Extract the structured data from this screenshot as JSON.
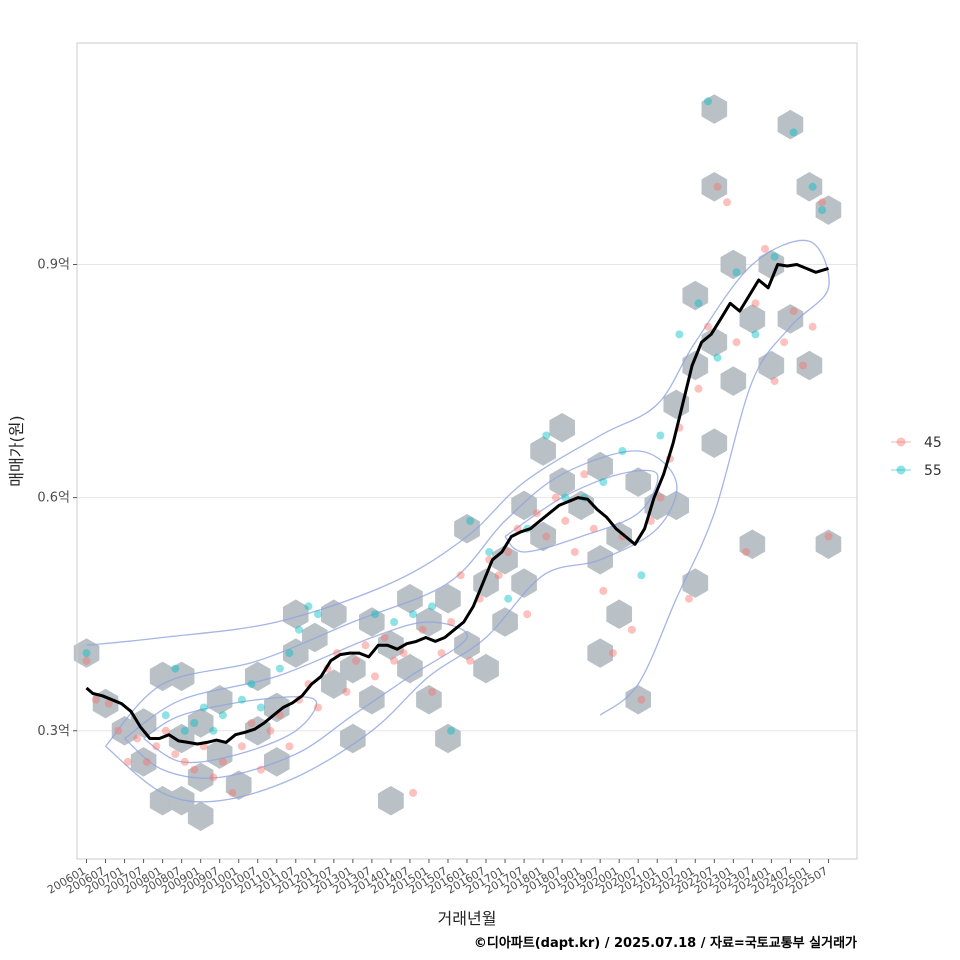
{
  "chart_data": {
    "type": "scatter",
    "title": "",
    "xlabel": "거래년월",
    "ylabel": "매매가(원)",
    "caption": "©디아파트(dapt.kr) / 2025.07.18 / 자료=국토교통부 실거래가",
    "ylim": [
      0.135,
      1.185
    ],
    "xlim": [
      "2005-10",
      "2026-04"
    ],
    "x_ticks": [
      "200601",
      "200607",
      "200701",
      "200707",
      "200801",
      "200807",
      "200901",
      "200907",
      "201001",
      "201007",
      "201101",
      "201107",
      "201201",
      "201207",
      "201301",
      "201307",
      "201401",
      "201407",
      "201501",
      "201507",
      "201601",
      "201607",
      "201701",
      "201707",
      "201801",
      "201807",
      "201901",
      "201907",
      "202001",
      "202007",
      "202101",
      "202107",
      "202201",
      "202207",
      "202301",
      "202307",
      "202401",
      "202407",
      "202501",
      "202507"
    ],
    "y_ticks": [
      {
        "value": 0.3,
        "label": "0.3억"
      },
      {
        "value": 0.6,
        "label": "0.6억"
      },
      {
        "value": 0.9,
        "label": "0.9억"
      }
    ],
    "grid": true,
    "legend": {
      "position": "right",
      "entries": [
        {
          "label": "45",
          "color": "#F8766D"
        },
        {
          "label": "55",
          "color": "#00BFC4"
        }
      ]
    },
    "colors": {
      "hex": "#B9C0C6",
      "contour": "#8FA4E0",
      "trend": "#000000",
      "s45": "#F8766D",
      "s55": "#00BFC4",
      "panel_border": "#CCCCCC",
      "grid": "#E6E6E6"
    },
    "trend": [
      [
        "2006-01",
        0.355
      ],
      [
        "2006-03",
        0.348
      ],
      [
        "2006-06",
        0.345
      ],
      [
        "2006-09",
        0.34
      ],
      [
        "2006-12",
        0.335
      ],
      [
        "2007-03",
        0.325
      ],
      [
        "2007-06",
        0.305
      ],
      [
        "2007-09",
        0.29
      ],
      [
        "2007-12",
        0.29
      ],
      [
        "2008-03",
        0.295
      ],
      [
        "2008-06",
        0.287
      ],
      [
        "2008-09",
        0.285
      ],
      [
        "2008-12",
        0.283
      ],
      [
        "2009-03",
        0.285
      ],
      [
        "2009-06",
        0.288
      ],
      [
        "2009-09",
        0.285
      ],
      [
        "2009-12",
        0.295
      ],
      [
        "2010-03",
        0.298
      ],
      [
        "2010-06",
        0.302
      ],
      [
        "2010-09",
        0.31
      ],
      [
        "2010-12",
        0.32
      ],
      [
        "2011-03",
        0.33
      ],
      [
        "2011-06",
        0.336
      ],
      [
        "2011-09",
        0.345
      ],
      [
        "2011-12",
        0.36
      ],
      [
        "2012-03",
        0.37
      ],
      [
        "2012-06",
        0.39
      ],
      [
        "2012-09",
        0.398
      ],
      [
        "2012-12",
        0.4
      ],
      [
        "2013-03",
        0.4
      ],
      [
        "2013-06",
        0.395
      ],
      [
        "2013-09",
        0.41
      ],
      [
        "2013-12",
        0.41
      ],
      [
        "2014-03",
        0.405
      ],
      [
        "2014-06",
        0.412
      ],
      [
        "2014-09",
        0.415
      ],
      [
        "2014-12",
        0.42
      ],
      [
        "2015-03",
        0.415
      ],
      [
        "2015-06",
        0.42
      ],
      [
        "2015-09",
        0.43
      ],
      [
        "2015-12",
        0.44
      ],
      [
        "2016-03",
        0.46
      ],
      [
        "2016-06",
        0.49
      ],
      [
        "2016-09",
        0.52
      ],
      [
        "2016-12",
        0.53
      ],
      [
        "2017-03",
        0.55
      ],
      [
        "2017-06",
        0.556
      ],
      [
        "2017-09",
        0.56
      ],
      [
        "2017-12",
        0.57
      ],
      [
        "2018-03",
        0.58
      ],
      [
        "2018-06",
        0.59
      ],
      [
        "2018-09",
        0.595
      ],
      [
        "2018-12",
        0.6
      ],
      [
        "2019-03",
        0.598
      ],
      [
        "2019-06",
        0.585
      ],
      [
        "2019-09",
        0.575
      ],
      [
        "2019-12",
        0.56
      ],
      [
        "2020-03",
        0.55
      ],
      [
        "2020-06",
        0.54
      ],
      [
        "2020-09",
        0.56
      ],
      [
        "2020-12",
        0.6
      ],
      [
        "2021-03",
        0.63
      ],
      [
        "2021-06",
        0.67
      ],
      [
        "2021-09",
        0.72
      ],
      [
        "2021-12",
        0.77
      ],
      [
        "2022-03",
        0.8
      ],
      [
        "2022-06",
        0.81
      ],
      [
        "2022-09",
        0.83
      ],
      [
        "2022-12",
        0.85
      ],
      [
        "2023-03",
        0.84
      ],
      [
        "2023-06",
        0.86
      ],
      [
        "2023-09",
        0.88
      ],
      [
        "2023-12",
        0.87
      ],
      [
        "2024-03",
        0.9
      ],
      [
        "2024-06",
        0.898
      ],
      [
        "2024-09",
        0.9
      ],
      [
        "2024-12",
        0.895
      ],
      [
        "2025-03",
        0.89
      ],
      [
        "2025-07",
        0.895
      ]
    ],
    "hexbins": [
      [
        "2006-01",
        0.4
      ],
      [
        "2006-07",
        0.335
      ],
      [
        "2007-01",
        0.3
      ],
      [
        "2007-07",
        0.26
      ],
      [
        "2007-07",
        0.31
      ],
      [
        "2008-01",
        0.37
      ],
      [
        "2008-01",
        0.21
      ],
      [
        "2008-07",
        0.37
      ],
      [
        "2008-07",
        0.21
      ],
      [
        "2009-01",
        0.19
      ],
      [
        "2008-07",
        0.29
      ],
      [
        "2009-01",
        0.24
      ],
      [
        "2009-01",
        0.31
      ],
      [
        "2009-07",
        0.27
      ],
      [
        "2009-07",
        0.34
      ],
      [
        "2010-01",
        0.23
      ],
      [
        "2010-07",
        0.3
      ],
      [
        "2010-07",
        0.37
      ],
      [
        "2011-01",
        0.26
      ],
      [
        "2011-01",
        0.33
      ],
      [
        "2011-07",
        0.4
      ],
      [
        "2011-07",
        0.45
      ],
      [
        "2012-01",
        0.42
      ],
      [
        "2012-07",
        0.36
      ],
      [
        "2012-07",
        0.45
      ],
      [
        "2013-01",
        0.29
      ],
      [
        "2013-01",
        0.38
      ],
      [
        "2013-07",
        0.34
      ],
      [
        "2013-07",
        0.44
      ],
      [
        "2014-01",
        0.41
      ],
      [
        "2014-01",
        0.21
      ],
      [
        "2014-07",
        0.47
      ],
      [
        "2014-07",
        0.38
      ],
      [
        "2015-01",
        0.34
      ],
      [
        "2015-01",
        0.44
      ],
      [
        "2015-07",
        0.29
      ],
      [
        "2015-07",
        0.47
      ],
      [
        "2016-01",
        0.41
      ],
      [
        "2016-07",
        0.38
      ],
      [
        "2016-07",
        0.49
      ],
      [
        "2016-01",
        0.56
      ],
      [
        "2017-01",
        0.52
      ],
      [
        "2017-01",
        0.44
      ],
      [
        "2017-07",
        0.59
      ],
      [
        "2017-07",
        0.49
      ],
      [
        "2018-01",
        0.66
      ],
      [
        "2018-01",
        0.55
      ],
      [
        "2018-07",
        0.69
      ],
      [
        "2018-07",
        0.62
      ],
      [
        "2019-01",
        0.59
      ],
      [
        "2019-07",
        0.64
      ],
      [
        "2019-07",
        0.52
      ],
      [
        "2019-07",
        0.4
      ],
      [
        "2020-01",
        0.55
      ],
      [
        "2020-01",
        0.45
      ],
      [
        "2020-07",
        0.62
      ],
      [
        "2020-07",
        0.34
      ],
      [
        "2021-01",
        0.59
      ],
      [
        "2021-07",
        0.72
      ],
      [
        "2021-07",
        0.59
      ],
      [
        "2022-01",
        0.86
      ],
      [
        "2022-01",
        0.77
      ],
      [
        "2022-01",
        0.49
      ],
      [
        "2022-07",
        0.8
      ],
      [
        "2022-07",
        0.67
      ],
      [
        "2022-07",
        1.1
      ],
      [
        "2022-07",
        1.0
      ],
      [
        "2023-01",
        0.9
      ],
      [
        "2023-01",
        0.75
      ],
      [
        "2023-07",
        0.83
      ],
      [
        "2023-07",
        0.54
      ],
      [
        "2024-01",
        0.9
      ],
      [
        "2024-01",
        0.77
      ],
      [
        "2024-07",
        1.08
      ],
      [
        "2024-07",
        0.83
      ],
      [
        "2025-01",
        1.0
      ],
      [
        "2025-01",
        0.77
      ],
      [
        "2025-07",
        0.97
      ],
      [
        "2025-07",
        0.54
      ]
    ],
    "contours": [
      [
        [
          "2006-01",
          0.41
        ],
        [
          "2008-01",
          0.42
        ],
        [
          "2011-01",
          0.44
        ],
        [
          "2014-01",
          0.49
        ],
        [
          "2016-01",
          0.55
        ],
        [
          "2017-07",
          0.62
        ],
        [
          "2019-07",
          0.68
        ],
        [
          "2021-01",
          0.72
        ],
        [
          "2022-01",
          0.8
        ],
        [
          "2023-07",
          0.9
        ],
        [
          "2025-01",
          0.93
        ],
        [
          "2025-07",
          0.87
        ],
        [
          "2024-07",
          0.82
        ],
        [
          "2023-07",
          0.75
        ],
        [
          "2022-07",
          0.58
        ],
        [
          "2021-07",
          0.47
        ],
        [
          "2020-07",
          0.36
        ],
        [
          "2019-07",
          0.32
        ]
      ],
      [
        [
          "2006-07",
          0.28
        ],
        [
          "2008-01",
          0.36
        ],
        [
          "2010-07",
          0.39
        ],
        [
          "2013-01",
          0.44
        ],
        [
          "2015-07",
          0.49
        ],
        [
          "2017-01",
          0.57
        ],
        [
          "2018-07",
          0.63
        ],
        [
          "2020-07",
          0.66
        ],
        [
          "2021-07",
          0.62
        ],
        [
          "2021-01",
          0.56
        ],
        [
          "2019-07",
          0.52
        ],
        [
          "2018-01",
          0.5
        ],
        [
          "2016-07",
          0.42
        ],
        [
          "2015-01",
          0.37
        ],
        [
          "2013-07",
          0.3
        ],
        [
          "2011-07",
          0.24
        ],
        [
          "2009-07",
          0.21
        ],
        [
          "2008-01",
          0.22
        ],
        [
          "2006-07",
          0.28
        ]
      ],
      [
        [
          "2007-01",
          0.29
        ],
        [
          "2008-07",
          0.34
        ],
        [
          "2011-01",
          0.37
        ],
        [
          "2013-07",
          0.42
        ],
        [
          "2015-01",
          0.44
        ],
        [
          "2016-01",
          0.42
        ],
        [
          "2014-07",
          0.37
        ],
        [
          "2013-01",
          0.32
        ],
        [
          "2011-07",
          0.27
        ],
        [
          "2009-07",
          0.24
        ],
        [
          "2008-01",
          0.25
        ],
        [
          "2007-01",
          0.29
        ]
      ],
      [
        [
          "2007-07",
          0.29
        ],
        [
          "2008-07",
          0.32
        ],
        [
          "2010-07",
          0.34
        ],
        [
          "2012-01",
          0.34
        ],
        [
          "2011-07",
          0.3
        ],
        [
          "2010-01",
          0.27
        ],
        [
          "2008-07",
          0.26
        ],
        [
          "2007-07",
          0.29
        ]
      ],
      [
        [
          "2017-01",
          0.55
        ],
        [
          "2018-07",
          0.6
        ],
        [
          "2020-01",
          0.63
        ],
        [
          "2021-01",
          0.63
        ],
        [
          "2020-07",
          0.58
        ],
        [
          "2019-01",
          0.55
        ],
        [
          "2017-07",
          0.53
        ],
        [
          "2017-01",
          0.55
        ]
      ]
    ],
    "points_45": [
      [
        "2006-01",
        0.39
      ],
      [
        "2006-04",
        0.34
      ],
      [
        "2006-08",
        0.335
      ],
      [
        "2006-11",
        0.3
      ],
      [
        "2007-02",
        0.26
      ],
      [
        "2007-05",
        0.29
      ],
      [
        "2007-08",
        0.26
      ],
      [
        "2007-11",
        0.28
      ],
      [
        "2008-02",
        0.3
      ],
      [
        "2008-05",
        0.27
      ],
      [
        "2008-08",
        0.26
      ],
      [
        "2008-11",
        0.25
      ],
      [
        "2009-02",
        0.28
      ],
      [
        "2009-05",
        0.24
      ],
      [
        "2009-08",
        0.26
      ],
      [
        "2009-11",
        0.22
      ],
      [
        "2010-02",
        0.28
      ],
      [
        "2010-05",
        0.31
      ],
      [
        "2010-08",
        0.25
      ],
      [
        "2010-11",
        0.3
      ],
      [
        "2011-02",
        0.32
      ],
      [
        "2011-05",
        0.28
      ],
      [
        "2011-08",
        0.34
      ],
      [
        "2011-11",
        0.36
      ],
      [
        "2012-02",
        0.33
      ],
      [
        "2012-05",
        0.38
      ],
      [
        "2012-08",
        0.4
      ],
      [
        "2012-11",
        0.35
      ],
      [
        "2013-02",
        0.39
      ],
      [
        "2013-05",
        0.41
      ],
      [
        "2013-08",
        0.37
      ],
      [
        "2013-11",
        0.42
      ],
      [
        "2014-02",
        0.39
      ],
      [
        "2014-05",
        0.4
      ],
      [
        "2014-08",
        0.22
      ],
      [
        "2014-11",
        0.43
      ],
      [
        "2015-02",
        0.35
      ],
      [
        "2015-05",
        0.4
      ],
      [
        "2015-08",
        0.44
      ],
      [
        "2015-11",
        0.5
      ],
      [
        "2016-02",
        0.39
      ],
      [
        "2016-05",
        0.47
      ],
      [
        "2016-08",
        0.52
      ],
      [
        "2016-11",
        0.5
      ],
      [
        "2017-02",
        0.53
      ],
      [
        "2017-05",
        0.56
      ],
      [
        "2017-08",
        0.45
      ],
      [
        "2017-11",
        0.58
      ],
      [
        "2018-02",
        0.55
      ],
      [
        "2018-05",
        0.6
      ],
      [
        "2018-08",
        0.57
      ],
      [
        "2018-11",
        0.53
      ],
      [
        "2019-02",
        0.63
      ],
      [
        "2019-05",
        0.56
      ],
      [
        "2019-08",
        0.48
      ],
      [
        "2019-11",
        0.4
      ],
      [
        "2020-02",
        0.55
      ],
      [
        "2020-05",
        0.43
      ],
      [
        "2020-08",
        0.34
      ],
      [
        "2020-11",
        0.57
      ],
      [
        "2021-02",
        0.6
      ],
      [
        "2021-05",
        0.65
      ],
      [
        "2021-08",
        0.69
      ],
      [
        "2021-11",
        0.47
      ],
      [
        "2022-02",
        0.74
      ],
      [
        "2022-05",
        0.82
      ],
      [
        "2022-08",
        1.0
      ],
      [
        "2022-11",
        0.98
      ],
      [
        "2023-02",
        0.8
      ],
      [
        "2023-05",
        0.53
      ],
      [
        "2023-08",
        0.85
      ],
      [
        "2023-11",
        0.92
      ],
      [
        "2024-02",
        0.75
      ],
      [
        "2024-05",
        0.8
      ],
      [
        "2024-08",
        0.84
      ],
      [
        "2024-11",
        0.77
      ],
      [
        "2025-02",
        0.82
      ],
      [
        "2025-05",
        0.98
      ],
      [
        "2025-07",
        0.55
      ]
    ],
    "points_55": [
      [
        "2006-01",
        0.4
      ],
      [
        "2008-02",
        0.32
      ],
      [
        "2008-05",
        0.38
      ],
      [
        "2008-08",
        0.3
      ],
      [
        "2008-11",
        0.31
      ],
      [
        "2009-02",
        0.33
      ],
      [
        "2009-05",
        0.3
      ],
      [
        "2009-08",
        0.32
      ],
      [
        "2010-02",
        0.34
      ],
      [
        "2010-05",
        0.36
      ],
      [
        "2010-08",
        0.33
      ],
      [
        "2011-02",
        0.38
      ],
      [
        "2011-05",
        0.4
      ],
      [
        "2011-08",
        0.43
      ],
      [
        "2011-11",
        0.46
      ],
      [
        "2012-02",
        0.45
      ],
      [
        "2013-08",
        0.45
      ],
      [
        "2014-02",
        0.44
      ],
      [
        "2014-08",
        0.45
      ],
      [
        "2015-02",
        0.46
      ],
      [
        "2015-08",
        0.3
      ],
      [
        "2016-02",
        0.57
      ],
      [
        "2016-08",
        0.53
      ],
      [
        "2017-02",
        0.47
      ],
      [
        "2017-08",
        0.56
      ],
      [
        "2018-02",
        0.68
      ],
      [
        "2018-08",
        0.6
      ],
      [
        "2019-02",
        0.6
      ],
      [
        "2019-08",
        0.62
      ],
      [
        "2020-02",
        0.66
      ],
      [
        "2020-08",
        0.5
      ],
      [
        "2021-02",
        0.68
      ],
      [
        "2021-08",
        0.81
      ],
      [
        "2022-02",
        0.85
      ],
      [
        "2022-05",
        1.11
      ],
      [
        "2022-08",
        0.78
      ],
      [
        "2023-02",
        0.89
      ],
      [
        "2023-08",
        0.81
      ],
      [
        "2024-02",
        0.91
      ],
      [
        "2024-08",
        1.07
      ],
      [
        "2025-02",
        1.0
      ],
      [
        "2025-05",
        0.97
      ]
    ]
  }
}
